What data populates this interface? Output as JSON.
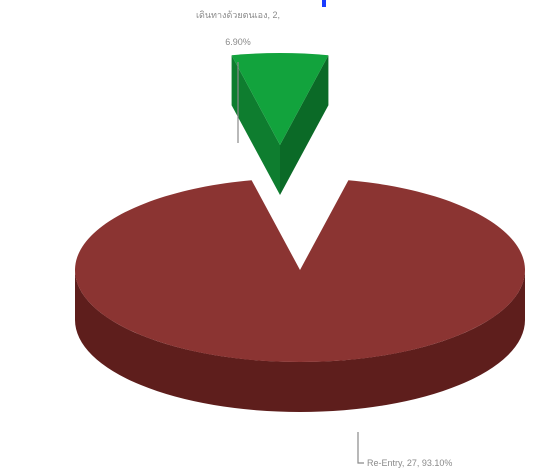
{
  "chart_data": {
    "type": "pie",
    "style": "3d-exploded",
    "legend": "none",
    "slices": [
      {
        "name": "Re-Entry",
        "value": 27,
        "percent": "93.10%",
        "color": "#8b3432",
        "side_color": "#5e1e1c",
        "label": "Re-Entry, 27, 93.10%"
      },
      {
        "name": "เดินทางด้วยตนเอง",
        "value": 2,
        "percent": "6.90%",
        "color": "#12a33d",
        "side_color": "#0b6a27",
        "label_line1": "เดินทางด้วยตนเอง, 2,",
        "label_line2": "6.90%"
      }
    ],
    "top_accent_color": "#1a3cff"
  }
}
